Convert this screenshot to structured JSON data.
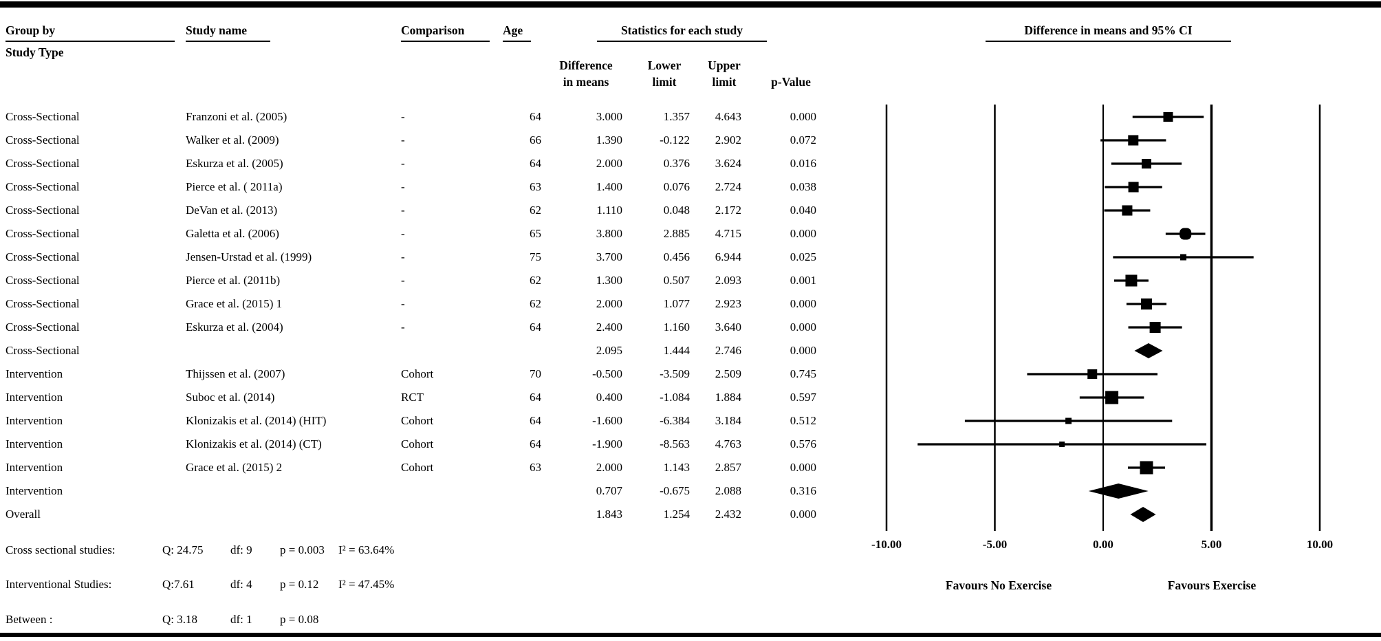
{
  "table": {
    "col_group_line1": "Group by",
    "col_group_line2": "Study Type",
    "col_study": "Study name",
    "col_comparison": "Comparison",
    "col_age": "Age",
    "stats_header": "Statistics for each study",
    "col_diff_line1": "Difference",
    "col_diff_line2": "in means",
    "col_lower_line1": "Lower",
    "col_lower_line2": "limit",
    "col_upper_line1": "Upper",
    "col_upper_line2": "limit",
    "col_p": "p-Value"
  },
  "plot": {
    "header": "Difference in means and 95% CI",
    "favours_left": "Favours No Exercise",
    "favours_right": "Favours Exercise"
  },
  "chart_data": {
    "type": "forest",
    "title": "Difference in means and 95% CI",
    "xlabel": "Difference in means",
    "xlim": [
      -10,
      10
    ],
    "x_ticks": [
      -10,
      -5,
      0,
      5,
      10
    ],
    "x_tick_labels": [
      "-10.00",
      "-5.00",
      "0.00",
      "5.00",
      "10.00"
    ],
    "favours_left": "Favours No Exercise",
    "favours_right": "Favours Exercise",
    "marker_color": "#000000",
    "rows": [
      {
        "group": "Cross-Sectional",
        "study": "Franzoni et al. (2005)",
        "comparison": "-",
        "age": "64",
        "diff": "3.000",
        "lower": "1.357",
        "upper": "4.643",
        "p": "0.000",
        "kind": "study",
        "marker": 14
      },
      {
        "group": "Cross-Sectional",
        "study": "Walker et al. (2009)",
        "comparison": "-",
        "age": "66",
        "diff": "1.390",
        "lower": "-0.122",
        "upper": "2.902",
        "p": "0.072",
        "kind": "study",
        "marker": 15
      },
      {
        "group": "Cross-Sectional",
        "study": "Eskurza et al. (2005)",
        "comparison": "-",
        "age": "64",
        "diff": "2.000",
        "lower": "0.376",
        "upper": "3.624",
        "p": "0.016",
        "kind": "study",
        "marker": 14
      },
      {
        "group": "Cross-Sectional",
        "study": "Pierce et al. ( 2011a)",
        "comparison": "-",
        "age": "63",
        "diff": "1.400",
        "lower": "0.076",
        "upper": "2.724",
        "p": "0.038",
        "kind": "study",
        "marker": 15
      },
      {
        "group": "Cross-Sectional",
        "study": "DeVan et al. (2013)",
        "comparison": "-",
        "age": "62",
        "diff": "1.110",
        "lower": "0.048",
        "upper": "2.172",
        "p": "0.040",
        "kind": "study",
        "marker": 15
      },
      {
        "group": "Cross-Sectional",
        "study": "Galetta et al. (2006)",
        "comparison": "-",
        "age": "65",
        "diff": "3.800",
        "lower": "2.885",
        "upper": "4.715",
        "p": "0.000",
        "kind": "study",
        "marker": 17,
        "shape": "round"
      },
      {
        "group": "Cross-Sectional",
        "study": "Jensen-Urstad et al. (1999)",
        "comparison": "-",
        "age": "75",
        "diff": "3.700",
        "lower": "0.456",
        "upper": "6.944",
        "p": "0.025",
        "kind": "study",
        "marker": 9
      },
      {
        "group": "Cross-Sectional",
        "study": "Pierce et al. (2011b)",
        "comparison": "-",
        "age": "62",
        "diff": "1.300",
        "lower": "0.507",
        "upper": "2.093",
        "p": "0.001",
        "kind": "study",
        "marker": 17
      },
      {
        "group": "Cross-Sectional",
        "study": "Grace et al. (2015) 1",
        "comparison": "-",
        "age": "62",
        "diff": "2.000",
        "lower": "1.077",
        "upper": "2.923",
        "p": "0.000",
        "kind": "study",
        "marker": 16
      },
      {
        "group": "Cross-Sectional",
        "study": "Eskurza et al. (2004)",
        "comparison": "-",
        "age": "64",
        "diff": "2.400",
        "lower": "1.160",
        "upper": "3.640",
        "p": "0.000",
        "kind": "study",
        "marker": 16
      },
      {
        "group": "Cross-Sectional",
        "study": "",
        "comparison": "",
        "age": "",
        "diff": "2.095",
        "lower": "1.444",
        "upper": "2.746",
        "p": "0.000",
        "kind": "summary"
      },
      {
        "group": "Intervention",
        "study": "Thijssen et al. (2007)",
        "comparison": "Cohort",
        "age": "70",
        "diff": "-0.500",
        "lower": "-3.509",
        "upper": "2.509",
        "p": "0.745",
        "kind": "study",
        "marker": 14
      },
      {
        "group": "Intervention",
        "study": "Suboc et al. (2014)",
        "comparison": "RCT",
        "age": "64",
        "diff": "0.400",
        "lower": "-1.084",
        "upper": "1.884",
        "p": "0.597",
        "kind": "study",
        "marker": 19
      },
      {
        "group": "Intervention",
        "study": "Klonizakis et al. (2014) (HIT)",
        "comparison": "Cohort",
        "age": "64",
        "diff": "-1.600",
        "lower": "-6.384",
        "upper": "3.184",
        "p": "0.512",
        "kind": "study",
        "marker": 9
      },
      {
        "group": "Intervention",
        "study": "Klonizakis et al. (2014) (CT)",
        "comparison": "Cohort",
        "age": "64",
        "diff": "-1.900",
        "lower": "-8.563",
        "upper": "4.763",
        "p": "0.576",
        "kind": "study",
        "marker": 8
      },
      {
        "group": "Intervention",
        "study": "Grace et al. (2015) 2",
        "comparison": "Cohort",
        "age": "63",
        "diff": "2.000",
        "lower": "1.143",
        "upper": "2.857",
        "p": "0.000",
        "kind": "study",
        "marker": 19
      },
      {
        "group": "Intervention",
        "study": "",
        "comparison": "",
        "age": "",
        "diff": "0.707",
        "lower": "-0.675",
        "upper": "2.088",
        "p": "0.316",
        "kind": "summary"
      },
      {
        "group": "Overall",
        "study": "",
        "comparison": "",
        "age": "",
        "diff": "1.843",
        "lower": "1.254",
        "upper": "2.432",
        "p": "0.000",
        "kind": "summary"
      }
    ],
    "heterogeneity": [
      {
        "label": "Cross sectional studies:",
        "q": "Q: 24.75",
        "df": "df: 9",
        "p": "p = 0.003",
        "i2": "I² = 63.64%"
      },
      {
        "label": "Interventional Studies:",
        "q": "Q:7.61",
        "df": "df: 4",
        "p": "p = 0.12",
        "i2": "I² = 47.45%"
      },
      {
        "label": "Between :",
        "q": "Q: 3.18",
        "df": "df: 1",
        "p": "p = 0.08",
        "i2": ""
      }
    ]
  }
}
